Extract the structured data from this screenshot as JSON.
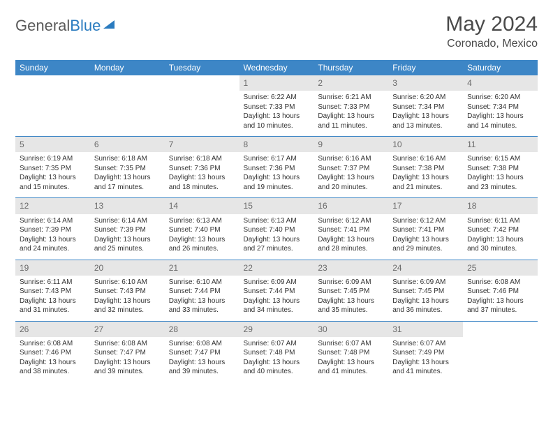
{
  "logo": {
    "word1": "General",
    "word2": "Blue"
  },
  "header": {
    "title": "May 2024",
    "subtitle": "Coronado, Mexico"
  },
  "colors": {
    "header_bg": "#3d86c6",
    "header_fg": "#ffffff",
    "daynum_bg": "#e6e6e6",
    "daynum_fg": "#6a6a6a",
    "rule": "#3d86c6",
    "text": "#333333",
    "logo_gray": "#5a5a5a",
    "logo_blue": "#2a7bbf"
  },
  "days": [
    "Sunday",
    "Monday",
    "Tuesday",
    "Wednesday",
    "Thursday",
    "Friday",
    "Saturday"
  ],
  "weeks": [
    [
      {
        "n": "",
        "sr": "",
        "ss": "",
        "dl": ""
      },
      {
        "n": "",
        "sr": "",
        "ss": "",
        "dl": ""
      },
      {
        "n": "",
        "sr": "",
        "ss": "",
        "dl": ""
      },
      {
        "n": "1",
        "sr": "Sunrise: 6:22 AM",
        "ss": "Sunset: 7:33 PM",
        "dl": "Daylight: 13 hours and 10 minutes."
      },
      {
        "n": "2",
        "sr": "Sunrise: 6:21 AM",
        "ss": "Sunset: 7:33 PM",
        "dl": "Daylight: 13 hours and 11 minutes."
      },
      {
        "n": "3",
        "sr": "Sunrise: 6:20 AM",
        "ss": "Sunset: 7:34 PM",
        "dl": "Daylight: 13 hours and 13 minutes."
      },
      {
        "n": "4",
        "sr": "Sunrise: 6:20 AM",
        "ss": "Sunset: 7:34 PM",
        "dl": "Daylight: 13 hours and 14 minutes."
      }
    ],
    [
      {
        "n": "5",
        "sr": "Sunrise: 6:19 AM",
        "ss": "Sunset: 7:35 PM",
        "dl": "Daylight: 13 hours and 15 minutes."
      },
      {
        "n": "6",
        "sr": "Sunrise: 6:18 AM",
        "ss": "Sunset: 7:35 PM",
        "dl": "Daylight: 13 hours and 17 minutes."
      },
      {
        "n": "7",
        "sr": "Sunrise: 6:18 AM",
        "ss": "Sunset: 7:36 PM",
        "dl": "Daylight: 13 hours and 18 minutes."
      },
      {
        "n": "8",
        "sr": "Sunrise: 6:17 AM",
        "ss": "Sunset: 7:36 PM",
        "dl": "Daylight: 13 hours and 19 minutes."
      },
      {
        "n": "9",
        "sr": "Sunrise: 6:16 AM",
        "ss": "Sunset: 7:37 PM",
        "dl": "Daylight: 13 hours and 20 minutes."
      },
      {
        "n": "10",
        "sr": "Sunrise: 6:16 AM",
        "ss": "Sunset: 7:38 PM",
        "dl": "Daylight: 13 hours and 21 minutes."
      },
      {
        "n": "11",
        "sr": "Sunrise: 6:15 AM",
        "ss": "Sunset: 7:38 PM",
        "dl": "Daylight: 13 hours and 23 minutes."
      }
    ],
    [
      {
        "n": "12",
        "sr": "Sunrise: 6:14 AM",
        "ss": "Sunset: 7:39 PM",
        "dl": "Daylight: 13 hours and 24 minutes."
      },
      {
        "n": "13",
        "sr": "Sunrise: 6:14 AM",
        "ss": "Sunset: 7:39 PM",
        "dl": "Daylight: 13 hours and 25 minutes."
      },
      {
        "n": "14",
        "sr": "Sunrise: 6:13 AM",
        "ss": "Sunset: 7:40 PM",
        "dl": "Daylight: 13 hours and 26 minutes."
      },
      {
        "n": "15",
        "sr": "Sunrise: 6:13 AM",
        "ss": "Sunset: 7:40 PM",
        "dl": "Daylight: 13 hours and 27 minutes."
      },
      {
        "n": "16",
        "sr": "Sunrise: 6:12 AM",
        "ss": "Sunset: 7:41 PM",
        "dl": "Daylight: 13 hours and 28 minutes."
      },
      {
        "n": "17",
        "sr": "Sunrise: 6:12 AM",
        "ss": "Sunset: 7:41 PM",
        "dl": "Daylight: 13 hours and 29 minutes."
      },
      {
        "n": "18",
        "sr": "Sunrise: 6:11 AM",
        "ss": "Sunset: 7:42 PM",
        "dl": "Daylight: 13 hours and 30 minutes."
      }
    ],
    [
      {
        "n": "19",
        "sr": "Sunrise: 6:11 AM",
        "ss": "Sunset: 7:43 PM",
        "dl": "Daylight: 13 hours and 31 minutes."
      },
      {
        "n": "20",
        "sr": "Sunrise: 6:10 AM",
        "ss": "Sunset: 7:43 PM",
        "dl": "Daylight: 13 hours and 32 minutes."
      },
      {
        "n": "21",
        "sr": "Sunrise: 6:10 AM",
        "ss": "Sunset: 7:44 PM",
        "dl": "Daylight: 13 hours and 33 minutes."
      },
      {
        "n": "22",
        "sr": "Sunrise: 6:09 AM",
        "ss": "Sunset: 7:44 PM",
        "dl": "Daylight: 13 hours and 34 minutes."
      },
      {
        "n": "23",
        "sr": "Sunrise: 6:09 AM",
        "ss": "Sunset: 7:45 PM",
        "dl": "Daylight: 13 hours and 35 minutes."
      },
      {
        "n": "24",
        "sr": "Sunrise: 6:09 AM",
        "ss": "Sunset: 7:45 PM",
        "dl": "Daylight: 13 hours and 36 minutes."
      },
      {
        "n": "25",
        "sr": "Sunrise: 6:08 AM",
        "ss": "Sunset: 7:46 PM",
        "dl": "Daylight: 13 hours and 37 minutes."
      }
    ],
    [
      {
        "n": "26",
        "sr": "Sunrise: 6:08 AM",
        "ss": "Sunset: 7:46 PM",
        "dl": "Daylight: 13 hours and 38 minutes."
      },
      {
        "n": "27",
        "sr": "Sunrise: 6:08 AM",
        "ss": "Sunset: 7:47 PM",
        "dl": "Daylight: 13 hours and 39 minutes."
      },
      {
        "n": "28",
        "sr": "Sunrise: 6:08 AM",
        "ss": "Sunset: 7:47 PM",
        "dl": "Daylight: 13 hours and 39 minutes."
      },
      {
        "n": "29",
        "sr": "Sunrise: 6:07 AM",
        "ss": "Sunset: 7:48 PM",
        "dl": "Daylight: 13 hours and 40 minutes."
      },
      {
        "n": "30",
        "sr": "Sunrise: 6:07 AM",
        "ss": "Sunset: 7:48 PM",
        "dl": "Daylight: 13 hours and 41 minutes."
      },
      {
        "n": "31",
        "sr": "Sunrise: 6:07 AM",
        "ss": "Sunset: 7:49 PM",
        "dl": "Daylight: 13 hours and 41 minutes."
      },
      {
        "n": "",
        "sr": "",
        "ss": "",
        "dl": ""
      }
    ]
  ]
}
